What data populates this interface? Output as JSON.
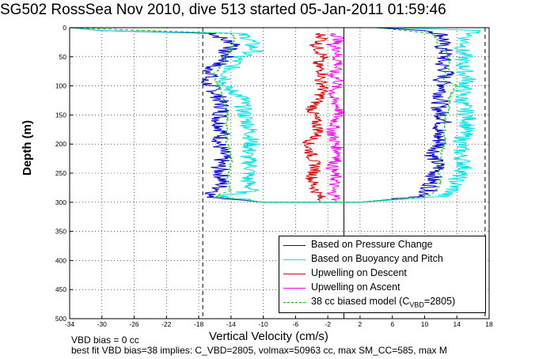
{
  "chart_data": {
    "type": "line",
    "title": "SG502 RossSea Nov 2010, dive 513 started 05-Jan-2011 01:59:46",
    "xlabel": "Vertical Velocity (cm/s)",
    "ylabel": "Depth (m)",
    "xlim": [
      -34,
      18
    ],
    "ylim": [
      500,
      0
    ],
    "y_reversed": true,
    "grid": true,
    "x_ticks": [
      -34,
      -30,
      -26,
      -22,
      -18,
      -14,
      -10,
      -6,
      -2,
      2,
      6,
      10,
      14,
      18
    ],
    "y_ticks": [
      0,
      50,
      100,
      150,
      200,
      250,
      300,
      350,
      400,
      450,
      500
    ],
    "vertical_lines": [
      {
        "x": -17.5,
        "style": "dashed"
      },
      {
        "x": 0,
        "style": "solid"
      },
      {
        "x": 17.5,
        "style": "dashed"
      }
    ],
    "legend_position": "bottom-right",
    "series": [
      {
        "name": "Based on Pressure Change",
        "color": "#0000cc",
        "style": "solid",
        "depth": [
          0,
          5,
          10,
          20,
          30,
          40,
          50,
          60,
          70,
          80,
          90,
          100,
          120,
          140,
          160,
          180,
          200,
          220,
          240,
          260,
          280,
          290,
          300
        ],
        "descent": [
          -34,
          -30,
          -16,
          -15,
          -13,
          -15,
          -14.5,
          -15,
          -17,
          -16,
          -17.5,
          -16.5,
          -15.5,
          -15,
          -15.5,
          -15,
          -15.5,
          -15,
          -15.5,
          -15,
          -15.5,
          -17,
          -10
        ],
        "ascent": [
          4,
          10,
          12,
          12.5,
          12,
          12.5,
          12.5,
          12,
          12.5,
          12.8,
          12,
          12.5,
          12,
          11.8,
          12.5,
          11.5,
          12,
          11,
          11.8,
          11,
          10.5,
          10,
          2
        ]
      },
      {
        "name": "Based on Buoyancy and Pitch",
        "color": "#00e5e5",
        "style": "solid",
        "depth": [
          0,
          5,
          10,
          20,
          30,
          40,
          50,
          60,
          70,
          80,
          90,
          100,
          120,
          140,
          160,
          180,
          200,
          220,
          240,
          260,
          280,
          290,
          300
        ],
        "descent": [
          -34,
          -30,
          -13,
          -11.5,
          -11.5,
          -11,
          -13,
          -13.5,
          -14,
          -14.5,
          -14.5,
          -15,
          -12.5,
          -12.5,
          -12,
          -11.5,
          -11.5,
          -12,
          -11.5,
          -12,
          -11.5,
          -15,
          -10
        ],
        "ascent": [
          6,
          17,
          16,
          15,
          15,
          14.5,
          15,
          14.5,
          15,
          15,
          15.5,
          15,
          14.5,
          15,
          15.5,
          15,
          14.5,
          14.5,
          15,
          14,
          13.5,
          12,
          2
        ]
      },
      {
        "name": "Upwelling on Descent",
        "color": "#dd0000",
        "style": "solid",
        "depth": [
          10,
          20,
          30,
          40,
          50,
          60,
          70,
          80,
          90,
          100,
          120,
          140,
          160,
          180,
          200,
          220,
          240,
          260,
          280,
          290,
          300
        ],
        "values": [
          -3,
          -2.5,
          -3.5,
          -3,
          -2.5,
          -3.5,
          -3,
          -2.5,
          -3,
          -2.5,
          -3,
          -4,
          -3.5,
          -3,
          -4.5,
          -4,
          -3.5,
          -4,
          -3.5,
          -3,
          -3
        ]
      },
      {
        "name": "Upwelling on Ascent",
        "color": "#ff00ff",
        "style": "solid",
        "depth": [
          10,
          20,
          30,
          40,
          50,
          60,
          70,
          80,
          90,
          100,
          120,
          140,
          160,
          180,
          200,
          220,
          240,
          260,
          280,
          290,
          300
        ],
        "values": [
          -1,
          -0.5,
          -1.5,
          -0.5,
          -1,
          -0.5,
          -1,
          -1.5,
          -0.5,
          -1,
          -1.5,
          -0.5,
          -1,
          -1.5,
          -1,
          -0.5,
          -1.5,
          -1,
          -1.5,
          -1,
          -1
        ]
      },
      {
        "name": "38 cc biased model (C_VBD=2805)",
        "color": "#00cc00",
        "style": "dashed",
        "depth": [
          0,
          10,
          20,
          30,
          40,
          50,
          60,
          70,
          80,
          90,
          100,
          120,
          140,
          160,
          180,
          200,
          220,
          240,
          260,
          280,
          290,
          300
        ],
        "descent": [
          -34,
          -14,
          -13.5,
          -14,
          -14,
          -14.5,
          -15,
          -15.5,
          -16,
          -16,
          -15.5,
          -15,
          -14.5,
          -14.5,
          -14.5,
          -14.5,
          -14,
          -14,
          -14.5,
          -14,
          -16,
          -10
        ],
        "ascent": [
          4,
          11,
          11.5,
          11.5,
          12.5,
          13,
          13,
          13,
          12.5,
          12.5,
          14,
          13,
          13,
          12.5,
          12.5,
          12.5,
          12,
          11.5,
          12,
          11.5,
          10.5,
          2
        ]
      }
    ],
    "legend_entries": [
      "Based on Pressure Change",
      "Based on Buoyancy and Pitch",
      "Upwelling on Descent",
      "Upwelling on Ascent",
      "38 cc biased model (C"
    ]
  },
  "legend_subscript": "VBD",
  "legend_suffix": "=2805)",
  "footer": {
    "line1": "VBD bias = 0 cc",
    "line2": "best fit VBD bias=38 implies: C_VBD=2805, volmax=50963 cc, max SM_CC=585, max M"
  }
}
